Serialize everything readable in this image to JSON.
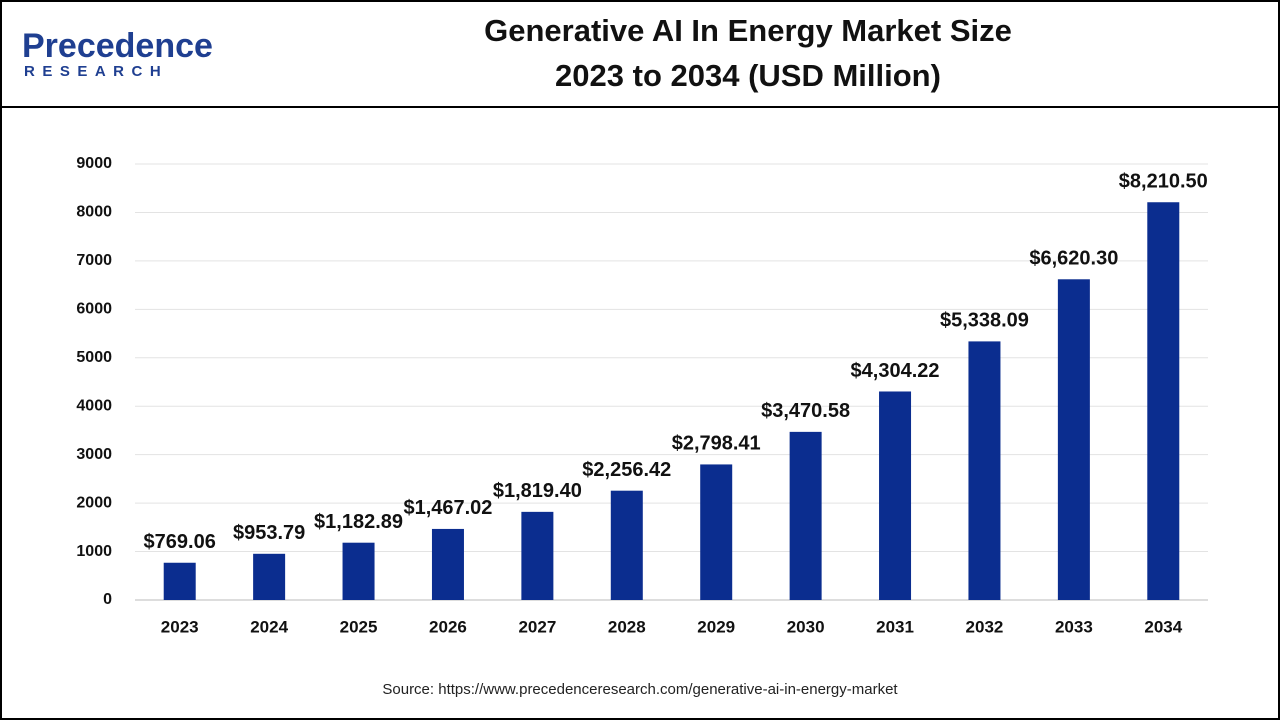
{
  "logo": {
    "name": "Precedence",
    "tagline": "RESEARCH"
  },
  "source": "Source: https://www.precedenceresearch.com/generative-ai-in-energy-market",
  "chart_data": {
    "type": "bar",
    "title": "Generative AI In Energy Market Size",
    "subtitle": "2023 to 2034 (USD Million)",
    "categories": [
      "2023",
      "2024",
      "2025",
      "2026",
      "2027",
      "2028",
      "2029",
      "2030",
      "2031",
      "2032",
      "2033",
      "2034"
    ],
    "values": [
      769.06,
      953.79,
      1182.89,
      1467.02,
      1819.4,
      2256.42,
      2798.41,
      3470.58,
      4304.22,
      5338.09,
      6620.3,
      8210.5
    ],
    "value_labels": [
      "$769.06",
      "$953.79",
      "$1,182.89",
      "$1,467.02",
      "$1,819.40",
      "$2,256.42",
      "$2,798.41",
      "$3,470.58",
      "$4,304.22",
      "$5,338.09",
      "$6,620.30",
      "$8,210.50"
    ],
    "color": "#0b2d8f",
    "ylim": [
      0,
      9000
    ],
    "yticks": [
      0,
      1000,
      2000,
      3000,
      4000,
      5000,
      6000,
      7000,
      8000,
      9000
    ],
    "grid": true
  }
}
